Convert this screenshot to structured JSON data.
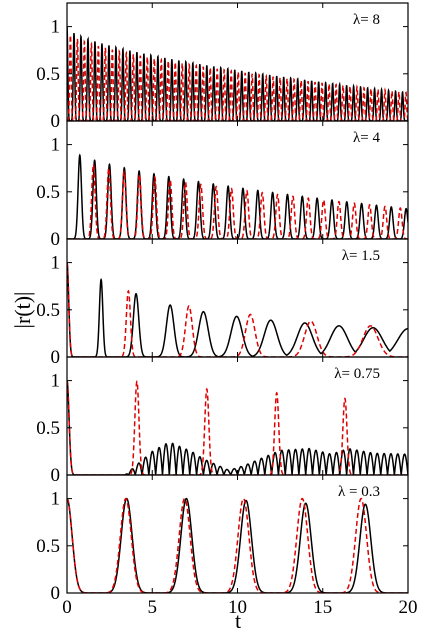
{
  "figure": {
    "xlabel": "t",
    "ylabel": "|r(t)|"
  },
  "colors": {
    "solid_series": "#000000",
    "dashed_series": "#e00000"
  },
  "chart_data": [
    {
      "type": "line",
      "panel_label": "λ= 8",
      "xlim": [
        0,
        20
      ],
      "ylim": [
        0,
        1.25
      ],
      "yticks": [
        0,
        0.5,
        1
      ],
      "ytick_labels": [
        "0",
        "0.5",
        "1"
      ],
      "series": [
        {
          "style": "solid",
          "shape": "pulse",
          "period": 0.41,
          "offset": 0.0,
          "width": 0.045,
          "amp_start": 1.0,
          "amp_end": 0.3
        },
        {
          "style": "dashed",
          "shape": "pulse",
          "period": 0.41,
          "offset": 0.2,
          "width": 0.045,
          "amp_start": 0.95,
          "amp_end": 0.3
        }
      ]
    },
    {
      "type": "line",
      "panel_label": "λ= 4",
      "xlim": [
        0,
        20
      ],
      "ylim": [
        0,
        1.25
      ],
      "yticks": [
        0,
        0.5,
        1
      ],
      "ytick_labels": [
        "0",
        "0.5",
        "1"
      ],
      "series": [
        {
          "style": "solid",
          "shape": "pulse",
          "period": 0.87,
          "offset": 0.75,
          "width": 0.1,
          "amp_start": 0.98,
          "amp_end": 0.32
        },
        {
          "style": "dashed",
          "shape": "pulse",
          "period": 0.9,
          "offset": 1.55,
          "width": 0.1,
          "amp_start": 0.92,
          "amp_end": 0.32
        }
      ]
    },
    {
      "type": "line",
      "panel_label": "λ= 1.5",
      "xlim": [
        0,
        20
      ],
      "ylim": [
        0,
        1.25
      ],
      "yticks": [
        0,
        0.5,
        1
      ],
      "ytick_labels": [
        "0",
        "0.5",
        "1"
      ],
      "series": [
        {
          "style": "solid",
          "shape": "pulse",
          "peaks": [
            [
              2.0,
              0.82,
              0.1
            ],
            [
              4.05,
              0.67,
              0.16
            ],
            [
              6.05,
              0.55,
              0.22
            ],
            [
              8.0,
              0.48,
              0.28
            ],
            [
              9.95,
              0.43,
              0.33
            ],
            [
              11.95,
              0.39,
              0.38
            ],
            [
              13.95,
              0.36,
              0.44
            ],
            [
              15.95,
              0.33,
              0.5
            ],
            [
              17.95,
              0.31,
              0.55
            ],
            [
              20.0,
              0.3,
              0.6
            ]
          ],
          "start_peak": [
            0.0,
            1.0,
            0.1
          ]
        },
        {
          "style": "dashed",
          "shape": "pulse",
          "peaks": [
            [
              3.6,
              0.7,
              0.12
            ],
            [
              7.15,
              0.54,
              0.2
            ],
            [
              10.75,
              0.45,
              0.28
            ],
            [
              14.3,
              0.38,
              0.36
            ],
            [
              17.8,
              0.33,
              0.44
            ]
          ],
          "start_peak": [
            0.0,
            1.0,
            0.1
          ]
        }
      ]
    },
    {
      "type": "line",
      "panel_label": "λ= 0.75",
      "xlim": [
        0,
        20
      ],
      "ylim": [
        0,
        1.25
      ],
      "yticks": [
        0,
        0.5,
        1
      ],
      "ytick_labels": [
        "0",
        "0.5",
        "1"
      ],
      "series": [
        {
          "style": "solid",
          "shape": "beat",
          "start_peak": [
            0.0,
            1.0,
            0.12
          ],
          "carrier_period": 0.4,
          "envelope": [
            [
              3.4,
              0.0
            ],
            [
              5.0,
              0.25
            ],
            [
              6.0,
              0.35
            ],
            [
              7.3,
              0.25
            ],
            [
              8.0,
              0.17
            ],
            [
              9.5,
              0.05
            ],
            [
              10.4,
              0.1
            ],
            [
              12.5,
              0.26
            ],
            [
              14.2,
              0.28
            ],
            [
              15.5,
              0.22
            ],
            [
              16.5,
              0.28
            ],
            [
              18.0,
              0.23
            ],
            [
              20.0,
              0.22
            ]
          ]
        },
        {
          "style": "dashed",
          "shape": "pulse",
          "peaks": [
            [
              4.1,
              0.99,
              0.12
            ],
            [
              8.2,
              0.91,
              0.12
            ],
            [
              12.3,
              0.87,
              0.12
            ],
            [
              16.3,
              0.81,
              0.12
            ]
          ],
          "start_peak": [
            0.0,
            1.0,
            0.12
          ]
        }
      ]
    },
    {
      "type": "line",
      "panel_label": "λ = 0.3",
      "xlim": [
        0,
        20
      ],
      "ylim": [
        0,
        1.25
      ],
      "yticks": [
        0,
        0.5,
        1
      ],
      "ytick_labels": [
        "0",
        "0.5",
        "1"
      ],
      "xticks": [
        0,
        5,
        10,
        15,
        20
      ],
      "xtick_labels": [
        "0",
        "5",
        "10",
        "15",
        "20"
      ],
      "series": [
        {
          "style": "solid",
          "shape": "pulse",
          "peaks": [
            [
              3.5,
              1.0,
              0.32
            ],
            [
              7.0,
              1.0,
              0.32
            ],
            [
              10.5,
              0.98,
              0.32
            ],
            [
              14.0,
              0.95,
              0.32
            ],
            [
              17.5,
              0.94,
              0.32
            ]
          ],
          "start_peak": [
            0.0,
            1.0,
            0.3
          ]
        },
        {
          "style": "dashed",
          "shape": "pulse",
          "peaks": [
            [
              3.45,
              1.0,
              0.32
            ],
            [
              6.9,
              1.0,
              0.32
            ],
            [
              10.35,
              1.0,
              0.32
            ],
            [
              13.8,
              1.0,
              0.32
            ],
            [
              17.25,
              1.0,
              0.32
            ]
          ],
          "start_peak": [
            0.0,
            1.0,
            0.3
          ]
        }
      ]
    }
  ]
}
